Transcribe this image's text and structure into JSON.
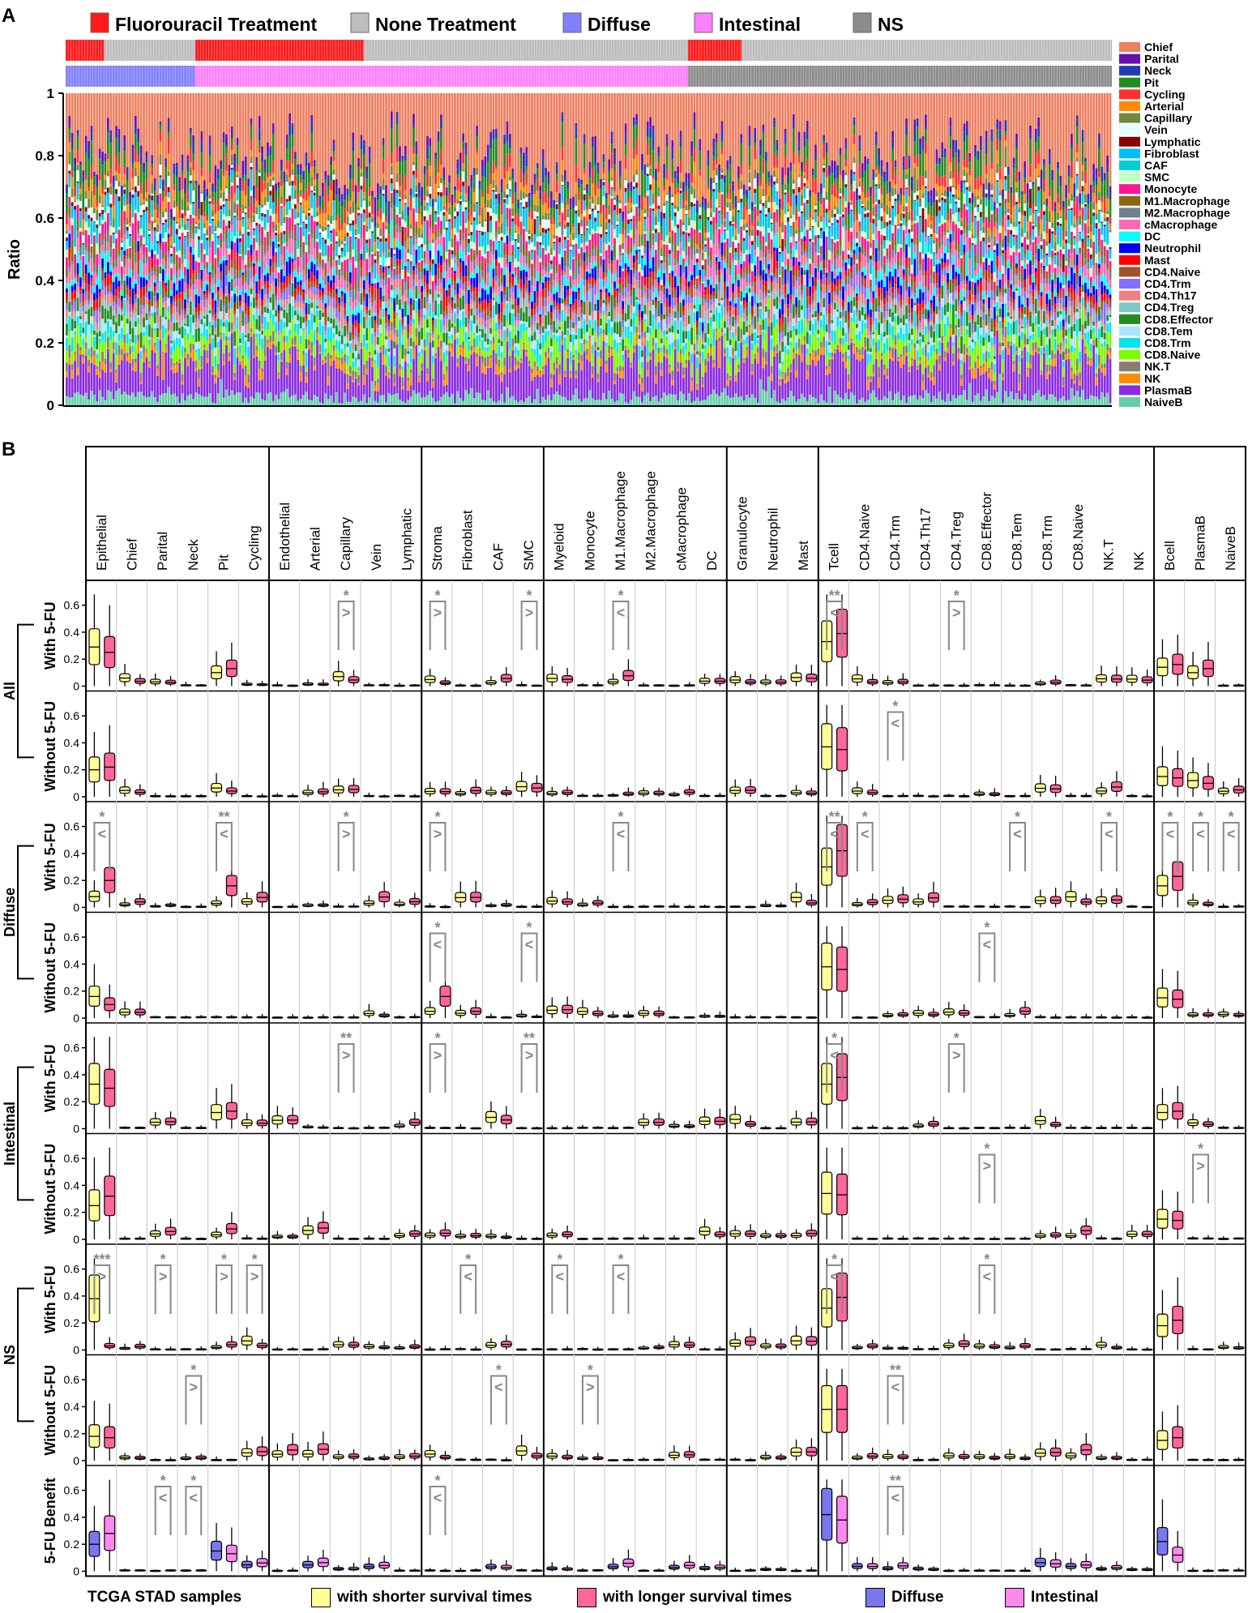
{
  "panel_a": {
    "label": "A",
    "legend": [
      {
        "label": "Fluorouracil Treatment",
        "color": "#ff1a1a"
      },
      {
        "label": "None Treatment",
        "color": "#bdbdbd"
      },
      {
        "label": "Diffuse",
        "color": "#8080ff"
      },
      {
        "label": "Intestinal",
        "color": "#ff80ff"
      },
      {
        "label": "NS",
        "color": "#8c8c8c"
      }
    ]
  },
  "panel_b": {
    "label": "B",
    "footer": {
      "source": "TCGA STAD samples",
      "legend": [
        {
          "label": "with shorter survival times",
          "color": "#ffff99"
        },
        {
          "label": "with longer survival times",
          "color": "#ff6699"
        },
        {
          "label": "Diffuse",
          "color": "#7777ee"
        },
        {
          "label": "Intestinal",
          "color": "#ff88ee"
        }
      ]
    },
    "groups": [
      {
        "label": "All",
        "rows": [
          "With 5-FU",
          "Without 5-FU"
        ]
      },
      {
        "label": "Diffuse",
        "rows": [
          "With 5-FU",
          "Without 5-FU"
        ]
      },
      {
        "label": "Intestinal",
        "rows": [
          "With 5-FU",
          "Without 5-FU"
        ]
      },
      {
        "label": "NS",
        "rows": [
          "With 5-FU",
          "Without 5-FU"
        ]
      },
      {
        "label": "",
        "rows": [
          "5-FU Benefit"
        ]
      }
    ]
  },
  "chart_data": [
    {
      "type": "bar",
      "subtype": "stacked-100",
      "ylabel": "Ratio",
      "ylim": [
        0,
        1
      ],
      "yticks": [
        "0",
        "0.2",
        "0.4",
        "0.6",
        "0.8",
        "1"
      ],
      "annotation_bars": {
        "treatment": [
          {
            "label": "Fluorouracil Treatment",
            "from": 0,
            "to": 0.037
          },
          {
            "label": "None Treatment",
            "from": 0.037,
            "to": 0.124
          },
          {
            "label": "Fluorouracil Treatment",
            "from": 0.124,
            "to": 0.285
          },
          {
            "label": "None Treatment",
            "from": 0.285,
            "to": 0.595
          },
          {
            "label": "Fluorouracil Treatment",
            "from": 0.595,
            "to": 0.646
          },
          {
            "label": "None Treatment",
            "from": 0.646,
            "to": 1
          }
        ],
        "subtype": [
          {
            "label": "Diffuse",
            "from": 0,
            "to": 0.124
          },
          {
            "label": "Intestinal",
            "from": 0.124,
            "to": 0.595
          },
          {
            "label": "NS",
            "from": 0.595,
            "to": 1
          }
        ]
      },
      "series": [
        {
          "name": "NaiveB",
          "color": "#66cdaa",
          "mean": 0.03
        },
        {
          "name": "PlasmaB",
          "color": "#8a2be2",
          "mean": 0.11
        },
        {
          "name": "NK",
          "color": "#ff8c00",
          "mean": 0.02
        },
        {
          "name": "NK.T",
          "color": "#8b7d6b",
          "mean": 0.02
        },
        {
          "name": "CD8.Naive",
          "color": "#7cfc00",
          "mean": 0.04
        },
        {
          "name": "CD8.Trm",
          "color": "#00e5ee",
          "mean": 0.03
        },
        {
          "name": "CD8.Tem",
          "color": "#b0e2ff",
          "mean": 0.02
        },
        {
          "name": "CD8.Effector",
          "color": "#228b22",
          "mean": 0.03
        },
        {
          "name": "CD4.Treg",
          "color": "#7fc8c8",
          "mean": 0.02
        },
        {
          "name": "CD4.Th17",
          "color": "#f08080",
          "mean": 0.02
        },
        {
          "name": "CD4.Trm",
          "color": "#8470ff",
          "mean": 0.02
        },
        {
          "name": "CD4.Naive",
          "color": "#a0522d",
          "mean": 0.02
        },
        {
          "name": "Mast",
          "color": "#ff0000",
          "mean": 0.02
        },
        {
          "name": "Neutrophil",
          "color": "#0000ee",
          "mean": 0.03
        },
        {
          "name": "DC",
          "color": "#00ffff",
          "mean": 0.02
        },
        {
          "name": "cMacrophage",
          "color": "#ff69b4",
          "mean": 0.03
        },
        {
          "name": "M2.Macrophage",
          "color": "#708090",
          "mean": 0.02
        },
        {
          "name": "M1.Macrophage",
          "color": "#8b6914",
          "mean": 0.02
        },
        {
          "name": "Monocyte",
          "color": "#ff1493",
          "mean": 0.03
        },
        {
          "name": "SMC",
          "color": "#c1ffc1",
          "mean": 0.02
        },
        {
          "name": "CAF",
          "color": "#00ced1",
          "mean": 0.02
        },
        {
          "name": "Fibroblast",
          "color": "#00bfff",
          "mean": 0.03
        },
        {
          "name": "Lymphatic",
          "color": "#8b0000",
          "mean": 0.01
        },
        {
          "name": "Vein",
          "color": "#e0ffff",
          "mean": 0.02
        },
        {
          "name": "Capillary",
          "color": "#6e8b3d",
          "mean": 0.02
        },
        {
          "name": "Arterial",
          "color": "#ff8c00",
          "mean": 0.03
        },
        {
          "name": "Cycling",
          "color": "#ff3030",
          "mean": 0.03
        },
        {
          "name": "Pit",
          "color": "#228b22",
          "mean": 0.05
        },
        {
          "name": "Neck",
          "color": "#1e3cb4",
          "mean": 0.02
        },
        {
          "name": "Parital",
          "color": "#6a0dad",
          "mean": 0.02
        },
        {
          "name": "Chief",
          "color": "#ee7f5f",
          "mean": 0.25
        }
      ],
      "legend_position": "right"
    },
    {
      "type": "box",
      "ylim": [
        0,
        0.7
      ],
      "yticks": [
        "0",
        "0.2",
        "0.4",
        "0.6"
      ],
      "column_groups": [
        {
          "cells": [
            "Epithelial",
            "Chief",
            "Parital",
            "Neck",
            "Pit",
            "Cycling"
          ]
        },
        {
          "cells": [
            "Endothelial",
            "Arterial",
            "Capillary",
            "Vein",
            "Lymphatic"
          ]
        },
        {
          "cells": [
            "Stroma",
            "Fibroblast",
            "CAF",
            "SMC"
          ]
        },
        {
          "cells": [
            "Myeloid",
            "Monocyte",
            "M1.Macrophage",
            "M2.Macrophage",
            "cMacrophage",
            "DC"
          ]
        },
        {
          "cells": [
            "Granulocyte",
            "Neutrophil",
            "Mast"
          ]
        },
        {
          "cells": [
            "Tcell",
            "CD4.Naive",
            "CD4.Trm",
            "CD4.Th17",
            "CD4.Treg",
            "CD8.Effector",
            "CD8.Tem",
            "CD8.Trm",
            "CD8.Naive",
            "NK.T",
            "NK"
          ]
        },
        {
          "cells": [
            "Bcell",
            "PlasmaB",
            "NaiveB"
          ]
        }
      ],
      "medians": {
        "All / With 5-FU": {
          "Epithelial": [
            0.29,
            0.25
          ],
          "Pit": [
            0.1,
            0.13
          ],
          "Tcell": [
            0.33,
            0.39
          ],
          "Bcell": [
            0.14,
            0.16
          ],
          "PlasmaB": [
            0.1,
            0.13
          ]
        },
        "All / Without 5-FU": {
          "Epithelial": [
            0.2,
            0.22
          ],
          "Tcell": [
            0.37,
            0.35
          ],
          "Bcell": [
            0.15,
            0.14
          ],
          "PlasmaB": [
            0.12,
            0.1
          ]
        },
        "Diffuse / With 5-FU": {
          "Epithelial": [
            0.08,
            0.2
          ],
          "Pit": [
            0.03,
            0.16
          ],
          "Tcell": [
            0.3,
            0.42
          ],
          "Bcell": [
            0.16,
            0.23
          ]
        },
        "Diffuse / Without 5-FU": {
          "Epithelial": [
            0.16,
            0.1
          ],
          "Stroma": [
            0.05,
            0.16
          ],
          "Tcell": [
            0.38,
            0.36
          ],
          "Bcell": [
            0.15,
            0.14
          ]
        },
        "Intestinal / With 5-FU": {
          "Epithelial": [
            0.33,
            0.3
          ],
          "Pit": [
            0.12,
            0.13
          ],
          "Tcell": [
            0.33,
            0.38
          ],
          "Bcell": [
            0.12,
            0.13
          ]
        },
        "Intestinal / Without 5-FU": {
          "Epithelial": [
            0.25,
            0.32
          ],
          "Tcell": [
            0.34,
            0.33
          ],
          "Bcell": [
            0.15,
            0.14
          ]
        },
        "NS / With 5-FU": {
          "Epithelial": [
            0.38,
            0.03
          ],
          "Tcell": [
            0.31,
            0.39
          ],
          "Bcell": [
            0.18,
            0.22
          ]
        },
        "NS / Without 5-FU": {
          "Epithelial": [
            0.18,
            0.17
          ],
          "Tcell": [
            0.38,
            0.38
          ],
          "Bcell": [
            0.15,
            0.17
          ]
        },
        "5-FU Benefit": {
          "Epithelial": [
            0.2,
            0.28
          ],
          "Pit": [
            0.15,
            0.13
          ],
          "Tcell": [
            0.42,
            0.38
          ],
          "Bcell": [
            0.22,
            0.12
          ]
        }
      },
      "significance": [
        {
          "row": "All / With 5-FU",
          "cell": "Tcell",
          "mark": "**",
          "sign": "<"
        },
        {
          "row": "All / With 5-FU",
          "cell": "Capillary",
          "mark": "*",
          "sign": ">"
        },
        {
          "row": "All / With 5-FU",
          "cell": "Stroma",
          "mark": "*",
          "sign": ">"
        },
        {
          "row": "All / With 5-FU",
          "cell": "SMC",
          "mark": "*",
          "sign": ">"
        },
        {
          "row": "All / With 5-FU",
          "cell": "M1.Macrophage",
          "mark": "*",
          "sign": "<"
        },
        {
          "row": "All / With 5-FU",
          "cell": "CD4.Treg",
          "mark": "*",
          "sign": ">"
        },
        {
          "row": "All / Without 5-FU",
          "cell": "CD4.Trm",
          "mark": "*",
          "sign": "<"
        },
        {
          "row": "Diffuse / With 5-FU",
          "cell": "Epithelial",
          "mark": "*",
          "sign": "<"
        },
        {
          "row": "Diffuse / With 5-FU",
          "cell": "Pit",
          "mark": "**",
          "sign": "<"
        },
        {
          "row": "Diffuse / With 5-FU",
          "cell": "Capillary",
          "mark": "*",
          "sign": ">"
        },
        {
          "row": "Diffuse / With 5-FU",
          "cell": "Stroma",
          "mark": "*",
          "sign": ">"
        },
        {
          "row": "Diffuse / With 5-FU",
          "cell": "M1.Macrophage",
          "mark": "*",
          "sign": "<"
        },
        {
          "row": "Diffuse / With 5-FU",
          "cell": "Tcell",
          "mark": "**",
          "sign": "<"
        },
        {
          "row": "Diffuse / With 5-FU",
          "cell": "CD4.Naive",
          "mark": "*",
          "sign": "<"
        },
        {
          "row": "Diffuse / With 5-FU",
          "cell": "CD8.Tem",
          "mark": "*",
          "sign": "<"
        },
        {
          "row": "Diffuse / With 5-FU",
          "cell": "NK.T",
          "mark": "*",
          "sign": "<"
        },
        {
          "row": "Diffuse / With 5-FU",
          "cell": "Bcell",
          "mark": "*",
          "sign": "<"
        },
        {
          "row": "Diffuse / With 5-FU",
          "cell": "PlasmaB",
          "mark": "*",
          "sign": "<"
        },
        {
          "row": "Diffuse / With 5-FU",
          "cell": "NaiveB",
          "mark": "*",
          "sign": "<"
        },
        {
          "row": "Diffuse / Without 5-FU",
          "cell": "Stroma",
          "mark": "*",
          "sign": "<"
        },
        {
          "row": "Diffuse / Without 5-FU",
          "cell": "SMC",
          "mark": "*",
          "sign": "<"
        },
        {
          "row": "Diffuse / Without 5-FU",
          "cell": "CD8.Effector",
          "mark": "*",
          "sign": "<"
        },
        {
          "row": "Intestinal / With 5-FU",
          "cell": "Capillary",
          "mark": "**",
          "sign": ">"
        },
        {
          "row": "Intestinal / With 5-FU",
          "cell": "Stroma",
          "mark": "*",
          "sign": ">"
        },
        {
          "row": "Intestinal / With 5-FU",
          "cell": "SMC",
          "mark": "**",
          "sign": ">"
        },
        {
          "row": "Intestinal / With 5-FU",
          "cell": "Tcell",
          "mark": "*",
          "sign": "<"
        },
        {
          "row": "Intestinal / With 5-FU",
          "cell": "CD4.Treg",
          "mark": "*",
          "sign": ">"
        },
        {
          "row": "Intestinal / Without 5-FU",
          "cell": "CD8.Effector",
          "mark": "*",
          "sign": ">"
        },
        {
          "row": "Intestinal / Without 5-FU",
          "cell": "PlasmaB",
          "mark": "*",
          "sign": ">"
        },
        {
          "row": "NS / With 5-FU",
          "cell": "Epithelial",
          "mark": "***",
          "sign": ">"
        },
        {
          "row": "NS / With 5-FU",
          "cell": "Parital",
          "mark": "*",
          "sign": ">"
        },
        {
          "row": "NS / With 5-FU",
          "cell": "Pit",
          "mark": "*",
          "sign": ">"
        },
        {
          "row": "NS / With 5-FU",
          "cell": "Cycling",
          "mark": "*",
          "sign": ">"
        },
        {
          "row": "NS / With 5-FU",
          "cell": "Fibroblast",
          "mark": "*",
          "sign": "<"
        },
        {
          "row": "NS / With 5-FU",
          "cell": "Myeloid",
          "mark": "*",
          "sign": "<"
        },
        {
          "row": "NS / With 5-FU",
          "cell": "M1.Macrophage",
          "mark": "*",
          "sign": "<"
        },
        {
          "row": "NS / With 5-FU",
          "cell": "Tcell",
          "mark": "*",
          "sign": "<"
        },
        {
          "row": "NS / With 5-FU",
          "cell": "CD8.Effector",
          "mark": "*",
          "sign": "<"
        },
        {
          "row": "NS / Without 5-FU",
          "cell": "Neck",
          "mark": "*",
          "sign": ">"
        },
        {
          "row": "NS / Without 5-FU",
          "cell": "CAF",
          "mark": "*",
          "sign": "<"
        },
        {
          "row": "NS / Without 5-FU",
          "cell": "Monocyte",
          "mark": "*",
          "sign": ">"
        },
        {
          "row": "NS / Without 5-FU",
          "cell": "CD4.Trm",
          "mark": "**",
          "sign": "<"
        },
        {
          "row": "5-FU Benefit",
          "cell": "Parital",
          "mark": "*",
          "sign": "<"
        },
        {
          "row": "5-FU Benefit",
          "cell": "Neck",
          "mark": "*",
          "sign": "<"
        },
        {
          "row": "5-FU Benefit",
          "cell": "Stroma",
          "mark": "*",
          "sign": "<"
        },
        {
          "row": "5-FU Benefit",
          "cell": "CD4.Trm",
          "mark": "**",
          "sign": "<"
        }
      ]
    }
  ]
}
